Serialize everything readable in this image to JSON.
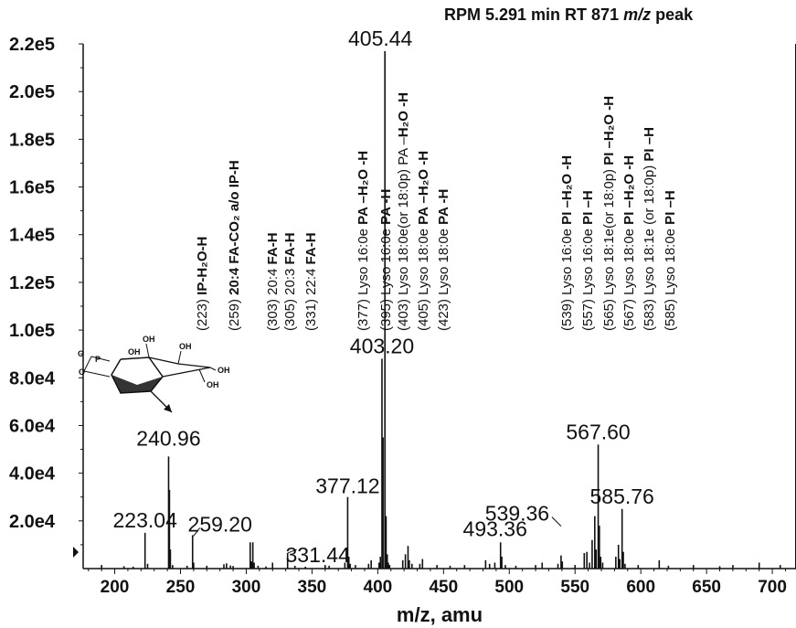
{
  "header": {
    "title_prefix": "RPM 5.291 min RT 871 ",
    "title_unit": "m/z",
    "title_suffix": " peak"
  },
  "chart_data": {
    "type": "bar",
    "title": "RPM 5.291 min RT 871 m/z peak",
    "xlabel": "m/z, amu",
    "ylabel": "",
    "xlim": [
      176,
      718
    ],
    "ylim": [
      0,
      220000
    ],
    "x_ticks": [
      200,
      250,
      300,
      350,
      400,
      450,
      500,
      550,
      600,
      650,
      700
    ],
    "x_tick_labels": [
      "200",
      "250",
      "300",
      "350",
      "400",
      "450",
      "500",
      "550",
      "600",
      "650",
      "700"
    ],
    "y_ticks": [
      20000,
      40000,
      60000,
      80000,
      100000,
      120000,
      140000,
      160000,
      180000,
      200000,
      220000
    ],
    "y_tick_labels": [
      "2.0e4",
      "4.0e4",
      "6.0e4",
      "8.0e4",
      "1.0e5",
      "1.2e5",
      "1.4e5",
      "1.6e5",
      "1.8e5",
      "2.0e5",
      "2.2e5"
    ],
    "grid": false,
    "peaks": [
      {
        "x": 190,
        "y": 1500
      },
      {
        "x": 207,
        "y": 1000
      },
      {
        "x": 214,
        "y": 800
      },
      {
        "x": 223.04,
        "y": 15000
      },
      {
        "x": 225,
        "y": 2000
      },
      {
        "x": 240.96,
        "y": 47000
      },
      {
        "x": 241.6,
        "y": 33000
      },
      {
        "x": 242.3,
        "y": 8000
      },
      {
        "x": 244,
        "y": 1500
      },
      {
        "x": 255,
        "y": 1200
      },
      {
        "x": 259.2,
        "y": 14000
      },
      {
        "x": 260,
        "y": 2500
      },
      {
        "x": 270,
        "y": 1200
      },
      {
        "x": 283,
        "y": 1800
      },
      {
        "x": 285,
        "y": 2200
      },
      {
        "x": 288,
        "y": 1300
      },
      {
        "x": 290,
        "y": 1100
      },
      {
        "x": 303,
        "y": 11000
      },
      {
        "x": 304,
        "y": 3000
      },
      {
        "x": 305,
        "y": 11000
      },
      {
        "x": 306,
        "y": 2500
      },
      {
        "x": 309,
        "y": 1200
      },
      {
        "x": 315,
        "y": 900
      },
      {
        "x": 320,
        "y": 2500
      },
      {
        "x": 331.44,
        "y": 6500
      },
      {
        "x": 337,
        "y": 1200
      },
      {
        "x": 345,
        "y": 800
      },
      {
        "x": 360,
        "y": 1500
      },
      {
        "x": 363,
        "y": 1200
      },
      {
        "x": 375,
        "y": 2500
      },
      {
        "x": 377.12,
        "y": 30000
      },
      {
        "x": 378,
        "y": 5000
      },
      {
        "x": 379,
        "y": 2000
      },
      {
        "x": 383,
        "y": 1500
      },
      {
        "x": 393,
        "y": 2000
      },
      {
        "x": 395,
        "y": 3500
      },
      {
        "x": 401,
        "y": 2500
      },
      {
        "x": 402,
        "y": 5000
      },
      {
        "x": 403.2,
        "y": 88000
      },
      {
        "x": 404,
        "y": 55000
      },
      {
        "x": 405.44,
        "y": 217000
      },
      {
        "x": 406.3,
        "y": 22000
      },
      {
        "x": 407.2,
        "y": 6000
      },
      {
        "x": 408,
        "y": 2500
      },
      {
        "x": 409,
        "y": 1500
      },
      {
        "x": 419,
        "y": 3500
      },
      {
        "x": 421,
        "y": 6000
      },
      {
        "x": 423,
        "y": 9500
      },
      {
        "x": 424,
        "y": 3500
      },
      {
        "x": 426,
        "y": 2000
      },
      {
        "x": 432,
        "y": 2000
      },
      {
        "x": 434,
        "y": 4000
      },
      {
        "x": 445,
        "y": 1500
      },
      {
        "x": 455,
        "y": 1200
      },
      {
        "x": 466,
        "y": 1500
      },
      {
        "x": 482,
        "y": 3500
      },
      {
        "x": 485,
        "y": 2000
      },
      {
        "x": 489,
        "y": 2500
      },
      {
        "x": 493.36,
        "y": 11000
      },
      {
        "x": 494.3,
        "y": 5000
      },
      {
        "x": 497,
        "y": 1500
      },
      {
        "x": 505,
        "y": 1200
      },
      {
        "x": 520,
        "y": 1500
      },
      {
        "x": 525,
        "y": 2500
      },
      {
        "x": 537,
        "y": 2000
      },
      {
        "x": 539.36,
        "y": 5500
      },
      {
        "x": 540.3,
        "y": 3000
      },
      {
        "x": 550,
        "y": 1500
      },
      {
        "x": 557,
        "y": 6500
      },
      {
        "x": 559,
        "y": 7000
      },
      {
        "x": 561,
        "y": 2500
      },
      {
        "x": 563,
        "y": 12000
      },
      {
        "x": 565,
        "y": 22000
      },
      {
        "x": 566,
        "y": 8000
      },
      {
        "x": 567.6,
        "y": 52000
      },
      {
        "x": 568.5,
        "y": 18000
      },
      {
        "x": 569.5,
        "y": 5000
      },
      {
        "x": 571,
        "y": 2500
      },
      {
        "x": 581,
        "y": 5000
      },
      {
        "x": 583,
        "y": 10000
      },
      {
        "x": 584,
        "y": 4000
      },
      {
        "x": 585.76,
        "y": 25000
      },
      {
        "x": 586.7,
        "y": 7000
      },
      {
        "x": 588,
        "y": 2000
      },
      {
        "x": 598,
        "y": 1500
      },
      {
        "x": 614,
        "y": 3500
      },
      {
        "x": 621,
        "y": 1200
      },
      {
        "x": 640,
        "y": 1500
      },
      {
        "x": 660,
        "y": 1000
      },
      {
        "x": 670,
        "y": 1500
      },
      {
        "x": 690,
        "y": 2500
      },
      {
        "x": 706,
        "y": 1500
      }
    ],
    "peak_labels": [
      {
        "x": 223.04,
        "y": 15000,
        "text": "223.04",
        "dx": 0,
        "dy": -6
      },
      {
        "x": 240.96,
        "y": 47000,
        "text": "240.96",
        "dx": 0,
        "dy": -12
      },
      {
        "x": 259.2,
        "y": 14000,
        "text": "259.20",
        "dx": 30,
        "dy": -4
      },
      {
        "x": 331.44,
        "y": 6500,
        "text": "331.44",
        "dx": 33,
        "dy": 10
      },
      {
        "x": 377.12,
        "y": 30000,
        "text": "377.12",
        "dx": 0,
        "dy": -4
      },
      {
        "x": 403.2,
        "y": 88000,
        "text": "403.20",
        "dx": 0,
        "dy": -6
      },
      {
        "x": 405.44,
        "y": 217000,
        "text": "405.44",
        "dx": -5,
        "dy": -6
      },
      {
        "x": 493.36,
        "y": 11000,
        "text": "493.36",
        "dx": -6,
        "dy": -7
      },
      {
        "x": 539.36,
        "y": 5500,
        "text": "539.36",
        "dx": -48,
        "dy": -38
      },
      {
        "x": 567.6,
        "y": 52000,
        "text": "567.60",
        "dx": 0,
        "dy": -6
      },
      {
        "x": 585.76,
        "y": 25000,
        "text": "585.76",
        "dx": 0,
        "dy": -6
      }
    ],
    "annotations": [
      {
        "x": 226,
        "text": "(223)  IP-H₂O-H",
        "bold_from": 7
      },
      {
        "x": 261,
        "text": "(259) 20:4 FA-CO₂ a/o IP-H",
        "bold_from": 6
      },
      {
        "x": 303,
        "text": "(303) 20:4 FA-H",
        "bold_from": 11
      },
      {
        "x": 322,
        "text": "(305) 20:3 FA-H",
        "bold_from": 11
      },
      {
        "x": 345,
        "text": "(331) 22:4 FA-H",
        "bold_from": 11
      },
      {
        "x": 402,
        "text": "(377) Lyso 16:0e PA –H₂O -H",
        "bold_from": 17
      },
      {
        "x": 427,
        "text": "(395) Lyso 16:0e PA -H",
        "bold_from": 17
      },
      {
        "x": 446,
        "text": "(403) Lyso 18:0e(or 18:0p) PA –H₂O -H",
        "bold_from": 31
      },
      {
        "x": 468,
        "text": "(405) Lyso 18:0e PA –H₂O -H",
        "bold_from": 17
      },
      {
        "x": 490,
        "text": "(423) Lyso 18:0e PA -H",
        "bold_from": 17
      },
      {
        "x": 625,
        "text": "(539) Lyso 16:0e PI –H₂O -H",
        "bold_from": 17
      },
      {
        "x": 648,
        "text": "(557) Lyso 16:0e PI –H",
        "bold_from": 17
      },
      {
        "x": 671,
        "text": "(565) Lyso 18:1e(or 18:0p) PI –H₂O -H",
        "bold_from": 27
      },
      {
        "x": 693,
        "text": "(567) Lyso 18:0e PI –H₂O -H",
        "bold_from": 17
      },
      {
        "x": 715,
        "text": "(583) Lyso 18:1e (or 18:0p) PI –H",
        "bold_from": 28
      },
      {
        "x": 738,
        "text": "(585) Lyso 18:0e PI –H",
        "bold_from": 17
      }
    ],
    "structure_labels": [
      "O",
      "P",
      "OH",
      "OH",
      "OH",
      "OH",
      "OH"
    ]
  }
}
